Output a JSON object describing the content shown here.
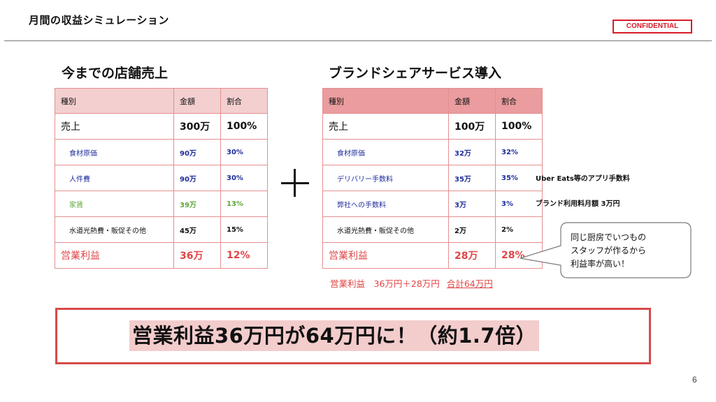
{
  "header": {
    "title": "月間の収益シミュレーション",
    "confidential": "CONFIDENTIAL"
  },
  "left": {
    "heading": "今までの店舗売上",
    "columns": [
      "種別",
      "金額",
      "割合"
    ],
    "rows": [
      [
        "売上",
        "300万",
        "100%"
      ],
      [
        "食材原価",
        "90万",
        "30%"
      ],
      [
        "人件費",
        "90万",
        "30%"
      ],
      [
        "家賃",
        "39万",
        "13%"
      ],
      [
        "水道光熱費・販促その他",
        "45万",
        "15%"
      ],
      [
        "営業利益",
        "36万",
        "12%"
      ]
    ]
  },
  "right": {
    "heading": "ブランドシェアサービス導入",
    "columns": [
      "種別",
      "金額",
      "割合"
    ],
    "rows": [
      [
        "売上",
        "100万",
        "100%"
      ],
      [
        "食材原価",
        "32万",
        "32%"
      ],
      [
        "デリバリー手数料",
        "35万",
        "35%"
      ],
      [
        "弊社への手数料",
        "3万",
        "3%"
      ],
      [
        "水道光熱費・販促その他",
        "2万",
        "2%"
      ],
      [
        "営業利益",
        "28万",
        "28%"
      ]
    ],
    "notes": {
      "delivery": "Uber Eats等のアプリ手数料",
      "brand_fee": "ブランド利用料月額 3万円"
    },
    "profit_sum": {
      "text": "営業利益　36万円＋28万円",
      "total": "合計64万円"
    }
  },
  "callout": {
    "lines": [
      "同じ厨房でいつもの",
      "スタッフが作るから",
      "利益率が高い！"
    ]
  },
  "banner": {
    "text": "営業利益36万円が64万円に！（約1.7倍）"
  },
  "page_number": "6",
  "colors": {
    "accent_red": "#d81b28",
    "profit_red": "#e04545",
    "table_border": "#e68e8e",
    "left_header_bg": "#f3cfd0",
    "right_header_bg": "#ea9c9e",
    "cost_blue": "#1f2d9c",
    "rent_green": "#5ea53b",
    "banner_highlight": "#f3cccc"
  }
}
